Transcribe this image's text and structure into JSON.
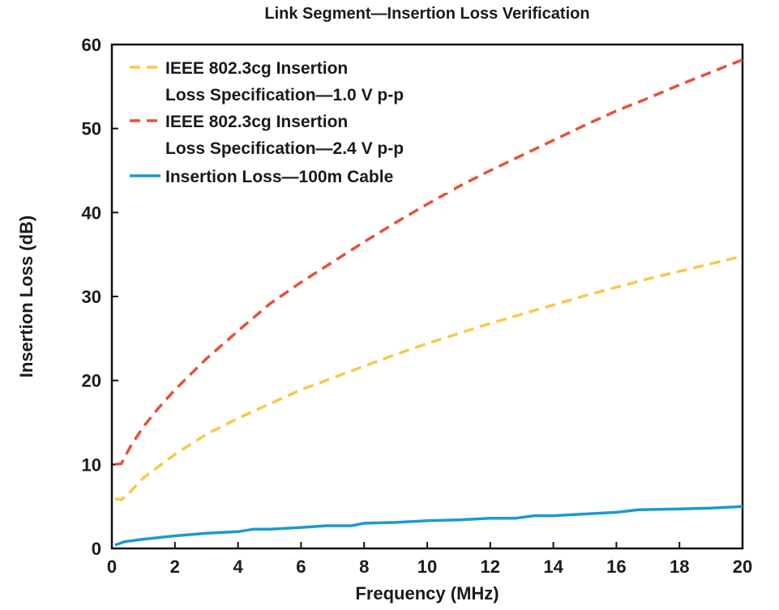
{
  "chart_data": {
    "type": "line",
    "title": "Link Segment—Insertion Loss Verification",
    "xlabel": "Frequency (MHz)",
    "ylabel": "Insertion Loss (dB)",
    "xlim": [
      0,
      20
    ],
    "ylim": [
      0,
      60
    ],
    "xticks": [
      "0",
      "2",
      "4",
      "6",
      "8",
      "10",
      "12",
      "14",
      "16",
      "18",
      "20"
    ],
    "yticks": [
      "0",
      "10",
      "20",
      "30",
      "40",
      "50",
      "60"
    ],
    "grid": false,
    "legend_position": "top-left",
    "series": [
      {
        "name_lines": [
          "IEEE 802.3cg Insertion",
          "Loss Specification—1.0 V p-p"
        ],
        "color": "#f7c948",
        "style": "dashed",
        "x": [
          0.1,
          0.3,
          0.6,
          1,
          2,
          3,
          4,
          5,
          6,
          7,
          8,
          9,
          10,
          11,
          12,
          13,
          14,
          15,
          16,
          17,
          18,
          19,
          20
        ],
        "y": [
          5.9,
          5.8,
          6.8,
          8.4,
          11.2,
          13.6,
          15.5,
          17.2,
          18.9,
          20.3,
          21.7,
          23.1,
          24.4,
          25.6,
          26.8,
          27.9,
          29.0,
          30.1,
          31.1,
          32.1,
          33.0,
          33.9,
          34.8
        ]
      },
      {
        "name_lines": [
          "IEEE 802.3cg Insertion",
          "Loss Specification—2.4 V p-p"
        ],
        "color": "#e8503a",
        "style": "dashed",
        "x": [
          0.1,
          0.3,
          0.6,
          1,
          1.5,
          2,
          3,
          4,
          5,
          6,
          7,
          8,
          9,
          10,
          11,
          12,
          13,
          14,
          15,
          16,
          17,
          18,
          19,
          20
        ],
        "y": [
          10.0,
          10.1,
          12.2,
          14.5,
          16.8,
          18.9,
          22.6,
          25.9,
          29.1,
          31.7,
          34.1,
          36.5,
          38.8,
          41.0,
          43.1,
          45.0,
          46.8,
          48.6,
          50.4,
          52.1,
          53.6,
          55.2,
          56.7,
          58.2
        ]
      },
      {
        "name_lines": [
          "Insertion Loss—100m Cable"
        ],
        "color": "#1a9bd0",
        "style": "solid",
        "x": [
          0.1,
          0.4,
          1,
          2,
          3,
          4,
          4.5,
          5,
          6,
          6.8,
          7.6,
          8,
          9,
          10,
          11,
          12,
          12.8,
          13.4,
          14,
          15,
          16,
          16.7,
          18,
          19,
          20
        ],
        "y": [
          0.4,
          0.8,
          1.1,
          1.5,
          1.8,
          2.0,
          2.3,
          2.3,
          2.5,
          2.7,
          2.7,
          3.0,
          3.1,
          3.3,
          3.4,
          3.6,
          3.6,
          3.9,
          3.9,
          4.1,
          4.3,
          4.6,
          4.7,
          4.8,
          5.0
        ]
      }
    ]
  }
}
